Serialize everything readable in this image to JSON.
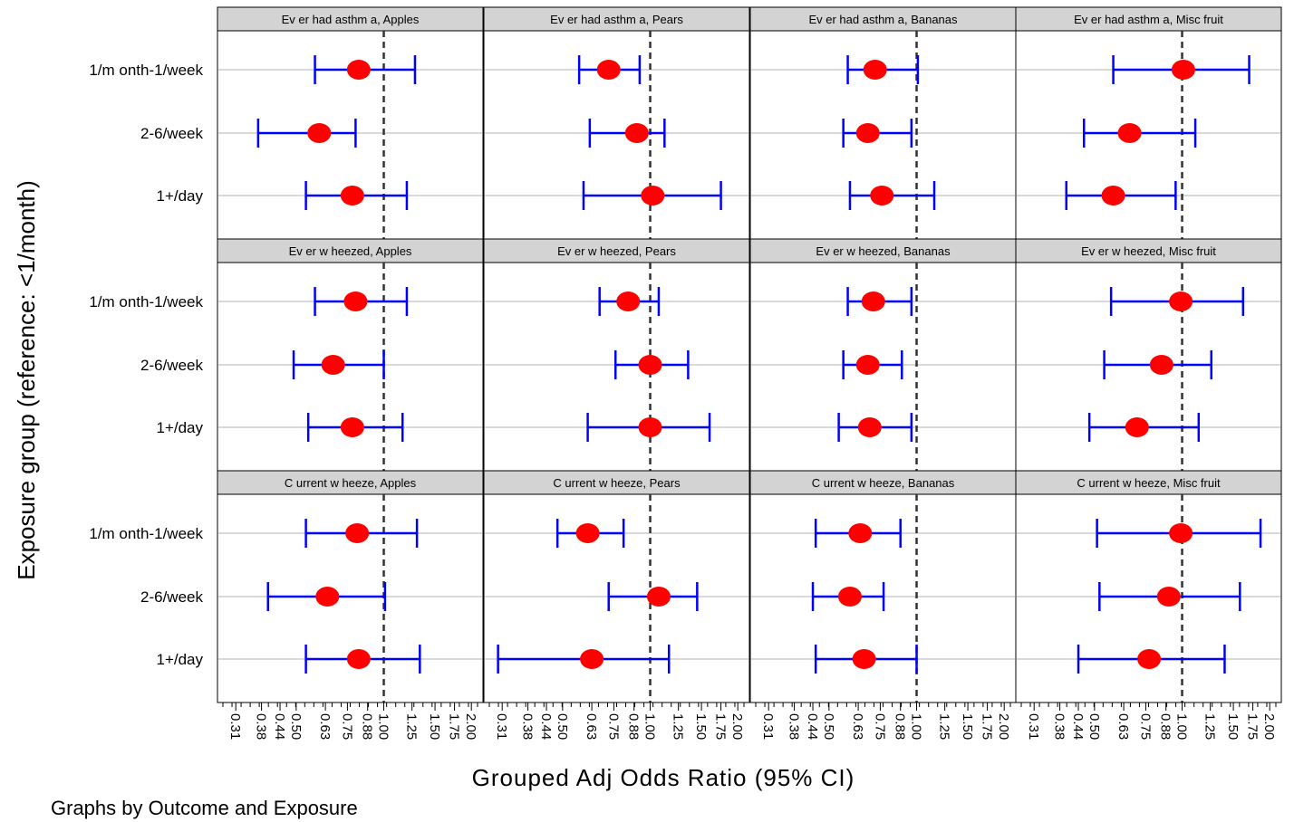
{
  "chart_data": {
    "type": "scatter",
    "subtype": "forest-plot-small-multiples",
    "xlabel": "Grouped Adj Odds Ratio (95% CI)",
    "ylabel": "Exposure group (reference: <1/month)",
    "note": "Graphs by Outcome and Exposure",
    "x_scale": "log",
    "xlim": [
      0.28,
      2.1
    ],
    "x_ticks": [
      "0.31",
      "0.38",
      "0.44",
      "0.50",
      "0.63",
      "0.75",
      "0.88",
      "1.00",
      "1.25",
      "1.50",
      "1.75",
      "2.00"
    ],
    "reference_line": 1.0,
    "categories": [
      "1/month-1/week",
      "2-6/week",
      "1+/day"
    ],
    "category_labels": [
      "1/m onth-1/week",
      "2-6/week",
      "1+/day"
    ],
    "colors": {
      "point": "#ff0000",
      "ci": "#0000ff",
      "reference": "#333333",
      "header": "#d3d3d3"
    },
    "panels": [
      {
        "title": "Ev er had asthm a, Apples",
        "outcome": "Ever had asthma",
        "exposure": "Apples",
        "or": [
          0.82,
          0.6,
          0.78
        ],
        "lo": [
          0.58,
          0.37,
          0.54
        ],
        "hi": [
          1.28,
          0.8,
          1.2
        ]
      },
      {
        "title": "Ev er had asthm a, Pears",
        "outcome": "Ever had asthma",
        "exposure": "Pears",
        "or": [
          0.72,
          0.9,
          1.02
        ],
        "lo": [
          0.57,
          0.62,
          0.59
        ],
        "hi": [
          0.92,
          1.12,
          1.75
        ]
      },
      {
        "title": "Ev er had asthm a, Bananas",
        "outcome": "Ever had asthma",
        "exposure": "Bananas",
        "or": [
          0.72,
          0.68,
          0.76
        ],
        "lo": [
          0.58,
          0.56,
          0.59
        ],
        "hi": [
          1.01,
          0.96,
          1.15
        ]
      },
      {
        "title": "Ev er had asthm a, Misc fruit",
        "outcome": "Ever had asthma",
        "exposure": "Misc fruit",
        "or": [
          1.01,
          0.66,
          0.58
        ],
        "lo": [
          0.58,
          0.46,
          0.4
        ],
        "hi": [
          1.7,
          1.11,
          0.95
        ]
      },
      {
        "title": "Ev er w heezed, Apples",
        "outcome": "Ever wheezed",
        "exposure": "Apples",
        "or": [
          0.8,
          0.67,
          0.78
        ],
        "lo": [
          0.58,
          0.49,
          0.55
        ],
        "hi": [
          1.2,
          1.0,
          1.16
        ]
      },
      {
        "title": "Ev er w heezed, Pears",
        "outcome": "Ever wheezed",
        "exposure": "Pears",
        "or": [
          0.84,
          1.0,
          1.0
        ],
        "lo": [
          0.67,
          0.76,
          0.61
        ],
        "hi": [
          1.07,
          1.35,
          1.6
        ]
      },
      {
        "title": "Ev er w heezed, Bananas",
        "outcome": "Ever wheezed",
        "exposure": "Bananas",
        "or": [
          0.71,
          0.68,
          0.69
        ],
        "lo": [
          0.58,
          0.56,
          0.54
        ],
        "hi": [
          0.96,
          0.89,
          0.96
        ]
      },
      {
        "title": "Ev er w heezed, Misc fruit",
        "outcome": "Ever wheezed",
        "exposure": "Misc fruit",
        "or": [
          0.99,
          0.85,
          0.7
        ],
        "lo": [
          0.57,
          0.54,
          0.48
        ],
        "hi": [
          1.62,
          1.26,
          1.14
        ]
      },
      {
        "title": "C urrent w heeze, Apples",
        "outcome": "Current wheeze",
        "exposure": "Apples",
        "or": [
          0.81,
          0.64,
          0.82
        ],
        "lo": [
          0.54,
          0.4,
          0.54
        ],
        "hi": [
          1.3,
          1.01,
          1.33
        ]
      },
      {
        "title": "C urrent w heeze, Pears",
        "outcome": "Current wheeze",
        "exposure": "Pears",
        "or": [
          0.61,
          1.07,
          0.63
        ],
        "lo": [
          0.48,
          0.72,
          0.3
        ],
        "hi": [
          0.81,
          1.45,
          1.16
        ]
      },
      {
        "title": "C urrent w heeze, Bananas",
        "outcome": "Current wheeze",
        "exposure": "Bananas",
        "or": [
          0.64,
          0.59,
          0.66
        ],
        "lo": [
          0.45,
          0.44,
          0.45
        ],
        "hi": [
          0.88,
          0.77,
          1.0
        ]
      },
      {
        "title": "C urrent w heeze, Misc fruit",
        "outcome": "Current wheeze",
        "exposure": "Misc fruit",
        "or": [
          0.99,
          0.9,
          0.77
        ],
        "lo": [
          0.51,
          0.52,
          0.44
        ],
        "hi": [
          1.86,
          1.58,
          1.4
        ]
      }
    ]
  }
}
